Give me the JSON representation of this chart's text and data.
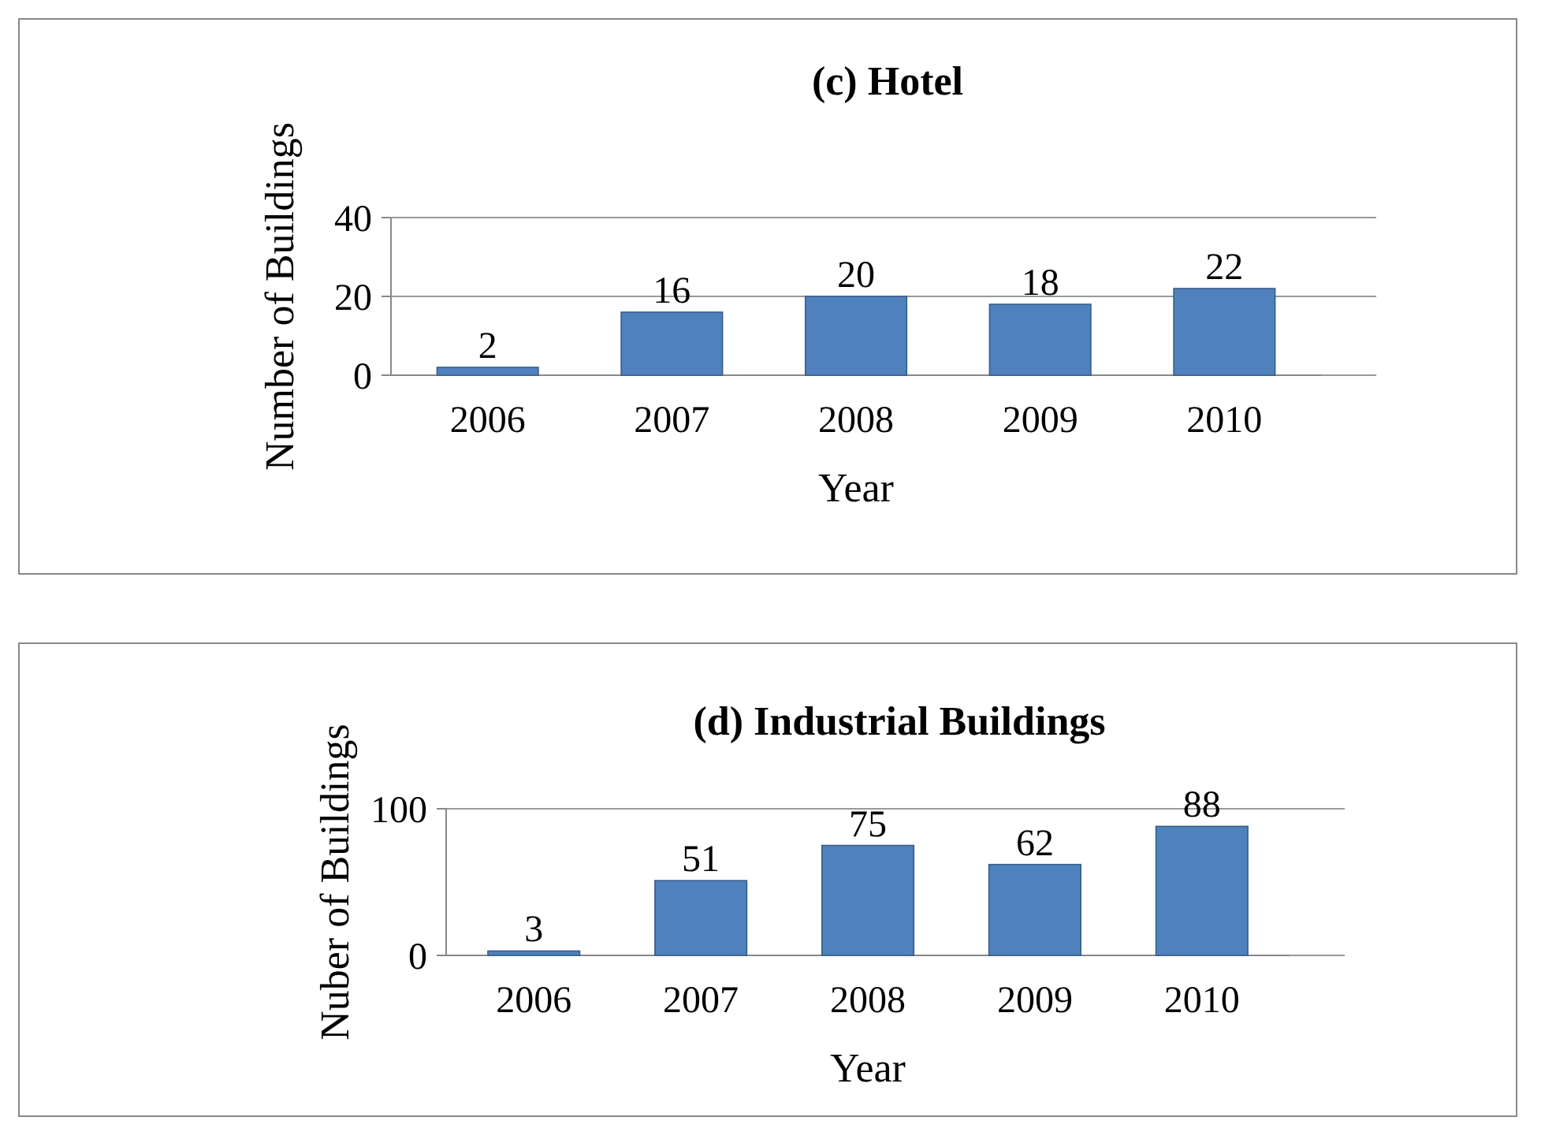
{
  "chart_data": [
    {
      "type": "bar",
      "title": "(c) Hotel",
      "xlabel": "Year",
      "ylabel": "Number of Buildings",
      "categories": [
        "2006",
        "2007",
        "2008",
        "2009",
        "2010"
      ],
      "values": [
        2,
        16,
        20,
        18,
        22
      ],
      "color": "#4f81bd",
      "ylim": [
        0,
        40
      ],
      "yticks": [
        0,
        20,
        40
      ],
      "grid": "y",
      "data_labels": true
    },
    {
      "type": "bar",
      "title": "(d) Industrial Buildings",
      "xlabel": "Year",
      "ylabel": "Nuber of Buildings",
      "categories": [
        "2006",
        "2007",
        "2008",
        "2009",
        "2010"
      ],
      "values": [
        3,
        51,
        75,
        62,
        88
      ],
      "color": "#4f81bd",
      "ylim": [
        0,
        100
      ],
      "yticks": [
        0,
        100
      ],
      "grid": "y",
      "data_labels": true
    }
  ]
}
